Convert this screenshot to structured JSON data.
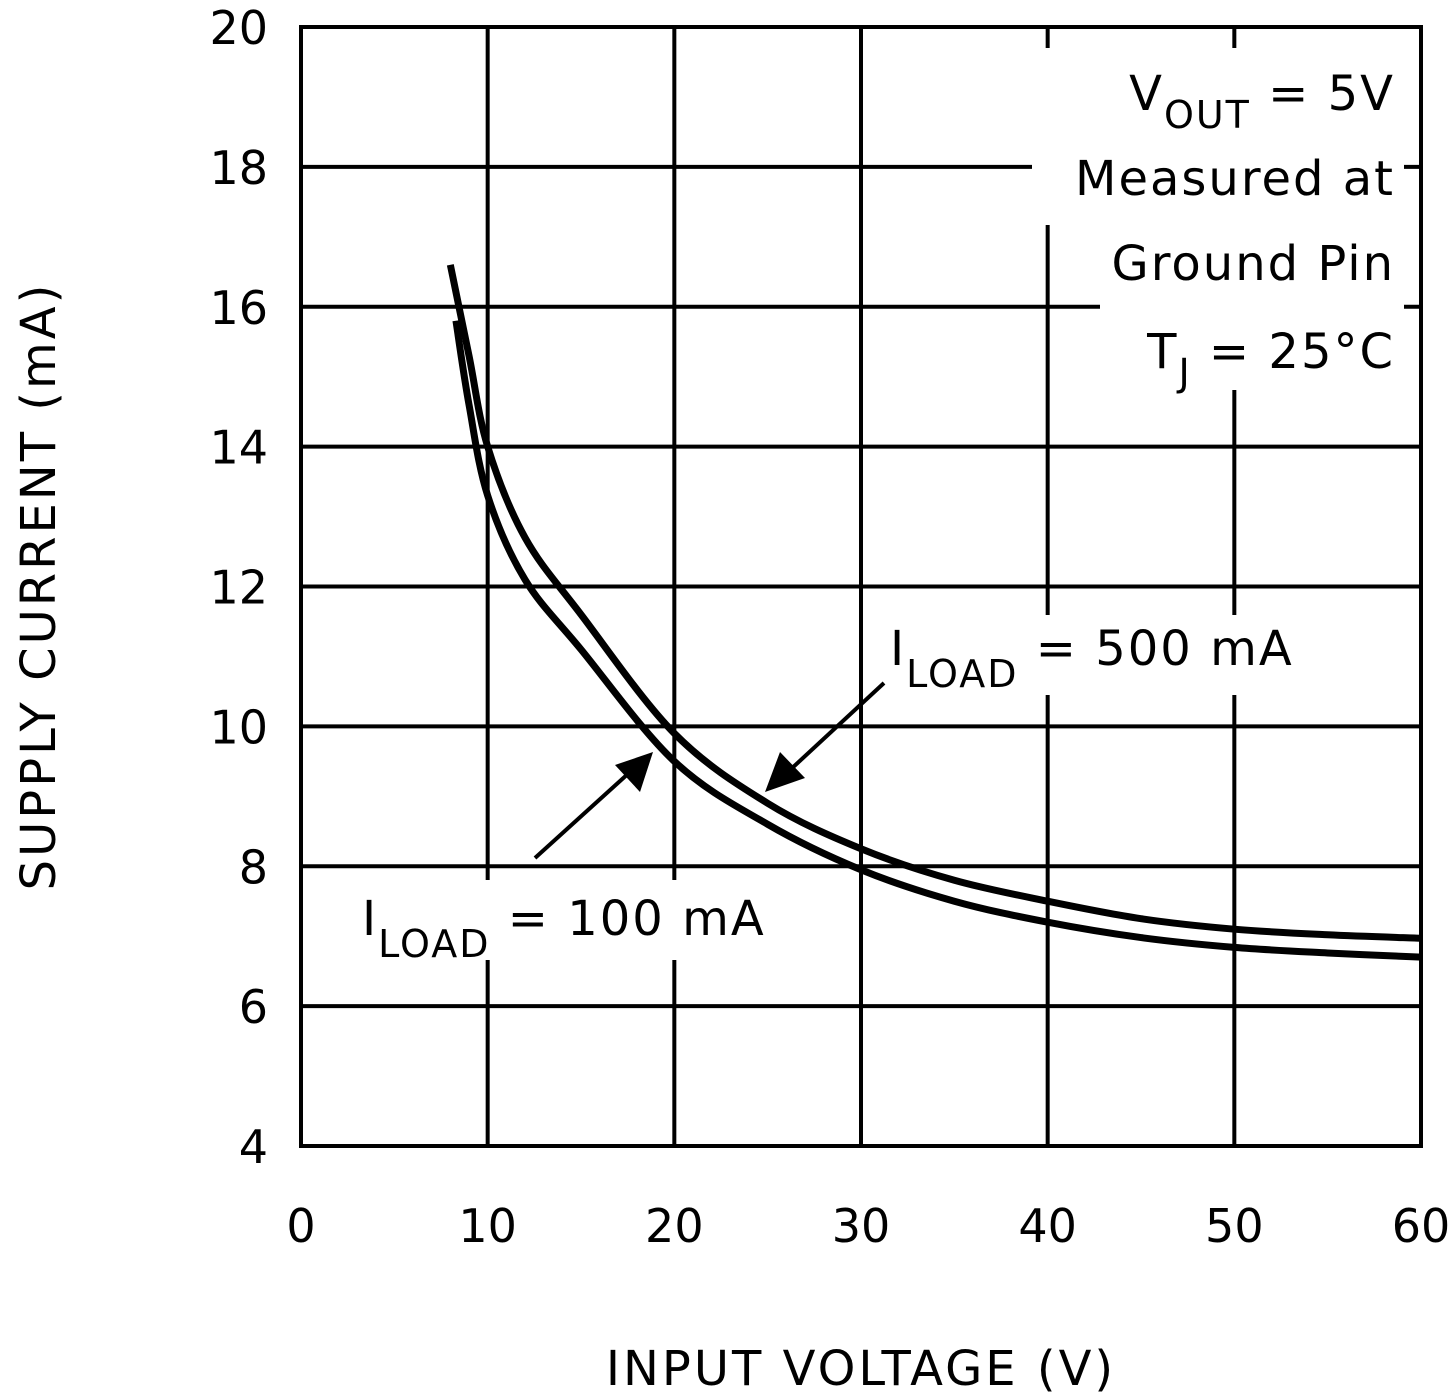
{
  "chart_data": {
    "type": "line",
    "xlabel": "INPUT VOLTAGE (V)",
    "ylabel": "SUPPLY CURRENT (mA)",
    "xlim": [
      0,
      60
    ],
    "ylim": [
      4,
      20
    ],
    "xticks": [
      "0",
      "10",
      "20",
      "30",
      "40",
      "50",
      "60"
    ],
    "yticks": [
      "4",
      "6",
      "8",
      "10",
      "12",
      "14",
      "16",
      "18",
      "20"
    ],
    "grid": true,
    "colors": {
      "line": "#000000",
      "grid": "#000000",
      "background": "#ffffff"
    },
    "series": [
      {
        "name_main": "I",
        "name_sub": "LOAD",
        "name_rest": " = 500 mA",
        "x": [
          8,
          9,
          10,
          12,
          15,
          20,
          25,
          30,
          35,
          40,
          45,
          50,
          55,
          60
        ],
        "y": [
          16.6,
          15.3,
          14.0,
          12.7,
          11.6,
          9.9,
          8.9,
          8.25,
          7.8,
          7.5,
          7.25,
          7.1,
          7.02,
          6.97
        ]
      },
      {
        "name_main": "I",
        "name_sub": "LOAD",
        "name_rest": " = 100 mA",
        "x": [
          8.3,
          9,
          10,
          12,
          15,
          20,
          25,
          30,
          35,
          40,
          45,
          50,
          55,
          60
        ],
        "y": [
          15.8,
          14.6,
          13.3,
          12.1,
          11.1,
          9.5,
          8.6,
          7.95,
          7.5,
          7.2,
          6.98,
          6.84,
          6.76,
          6.7
        ]
      }
    ],
    "annotation": {
      "vout_main": "V",
      "vout_sub": "OUT",
      "vout_rest": " = 5V",
      "line2": "Measured at",
      "line3": "Ground Pin",
      "tj_main": "T",
      "tj_sub": "J",
      "tj_rest": " = 25°C"
    }
  }
}
